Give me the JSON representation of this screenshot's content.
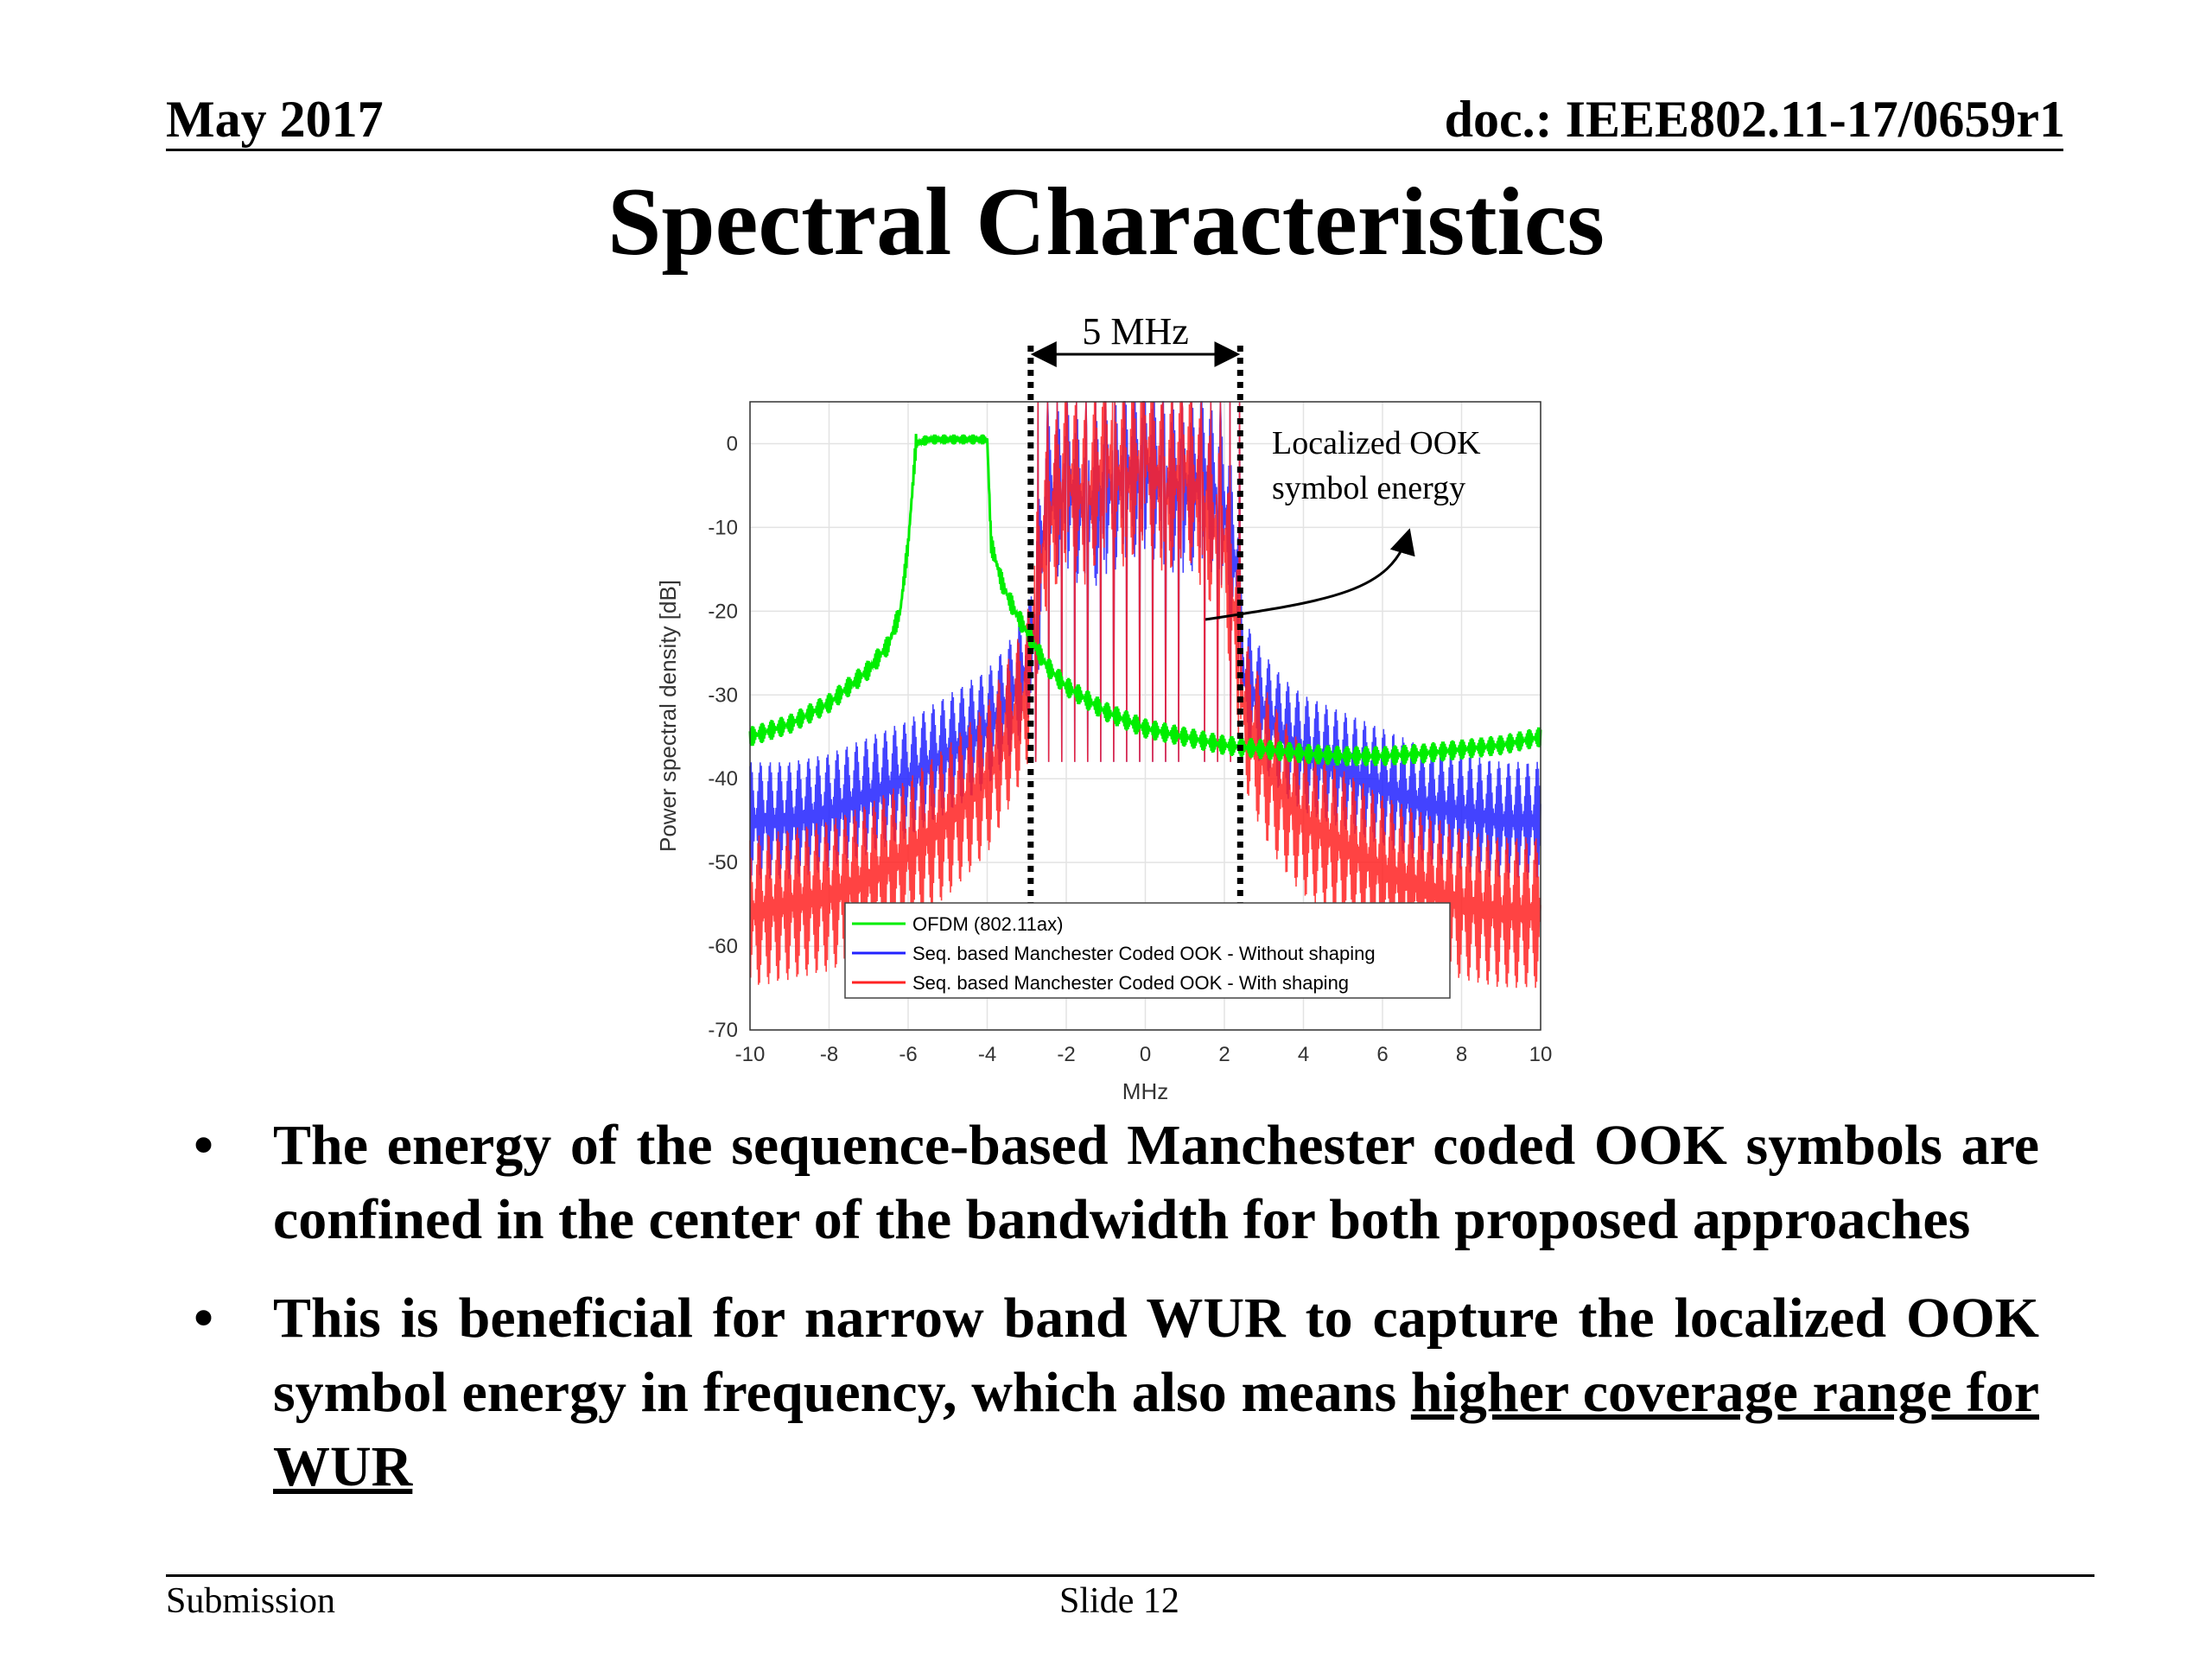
{
  "header": {
    "date": "May 2017",
    "doc_id": "doc.: IEEE802.11-17/0659r1"
  },
  "slide_title": "Spectral Characteristics",
  "annotations": {
    "bandwidth": "5 MHz",
    "callout_line1": "Localized OOK",
    "callout_line2": "symbol energy"
  },
  "chart_data": {
    "type": "line",
    "title": "",
    "xlabel": "MHz",
    "ylabel": "Power spectral density [dB]",
    "xlim": [
      -10,
      10
    ],
    "ylim": [
      -70,
      5
    ],
    "x_ticks": [
      -10,
      -8,
      -6,
      -4,
      -2,
      0,
      2,
      4,
      6,
      8,
      10
    ],
    "y_ticks": [
      0,
      -10,
      -20,
      -30,
      -40,
      -50,
      -60,
      -70
    ],
    "grid": true,
    "legend_position": "bottom-center",
    "band_markers_mhz": [
      -2.9,
      2.4
    ],
    "series": [
      {
        "name": "OFDM (802.11ax)",
        "color": "#00ee00",
        "x": [
          -10,
          -9,
          -8,
          -7,
          -6.5,
          -6.2,
          -6,
          -5.8,
          -5.5,
          -4,
          -3.9,
          -3.6,
          -3.3,
          -3,
          -2.5,
          -2,
          -1,
          0,
          1,
          2,
          3,
          4,
          5,
          6,
          7,
          8,
          9,
          10
        ],
        "values": [
          -35,
          -33.5,
          -31,
          -27,
          -24,
          -20,
          -12,
          0,
          0.5,
          0.5,
          -12,
          -17,
          -20,
          -22.5,
          -26.5,
          -29,
          -32,
          -34,
          -35,
          -36,
          -36.5,
          -37,
          -37.3,
          -37.3,
          -37,
          -36.5,
          -36,
          -35
        ]
      },
      {
        "name": "Seq. based Manchester Coded OOK - Without shaping",
        "color": "#2222ff",
        "x": [
          -10,
          -9,
          -8,
          -7,
          -6,
          -5,
          -4,
          -3.5,
          -3,
          -2.8,
          -2.5,
          -2,
          -1.5,
          -1,
          -0.5,
          0,
          0.5,
          1,
          1.5,
          2,
          2.3,
          2.5,
          3,
          3.5,
          4,
          5,
          6,
          7,
          8,
          9,
          10
        ],
        "values": [
          -45,
          -45,
          -44,
          -42,
          -40,
          -37,
          -34,
          -31,
          -27,
          -22,
          -7,
          -5,
          -8,
          -6,
          -4,
          -3,
          -5,
          -6,
          -4,
          -8,
          -15,
          -28,
          -32,
          -35,
          -37,
          -39,
          -41,
          -43,
          -44,
          -45,
          -45
        ]
      },
      {
        "name": "Seq. based Manchester Coded OOK - With shaping",
        "color": "#ff2222",
        "x": [
          -10,
          -9,
          -8,
          -7,
          -6,
          -5,
          -4,
          -3.5,
          -3,
          -2.8,
          -2.5,
          -2,
          -1.5,
          -1,
          -0.5,
          0,
          0.5,
          1,
          1.5,
          2,
          2.3,
          2.5,
          3,
          3.5,
          4,
          5,
          6,
          7,
          8,
          9,
          10
        ],
        "values": [
          -56,
          -55,
          -54,
          -52,
          -49,
          -45,
          -40,
          -35,
          -30,
          -20,
          -10,
          -4,
          -7,
          -2,
          -5,
          -1,
          -6,
          -3,
          -8,
          -12,
          -22,
          -32,
          -38,
          -42,
          -45,
          -48,
          -51,
          -53,
          -55,
          -56,
          -56
        ]
      }
    ]
  }
}
